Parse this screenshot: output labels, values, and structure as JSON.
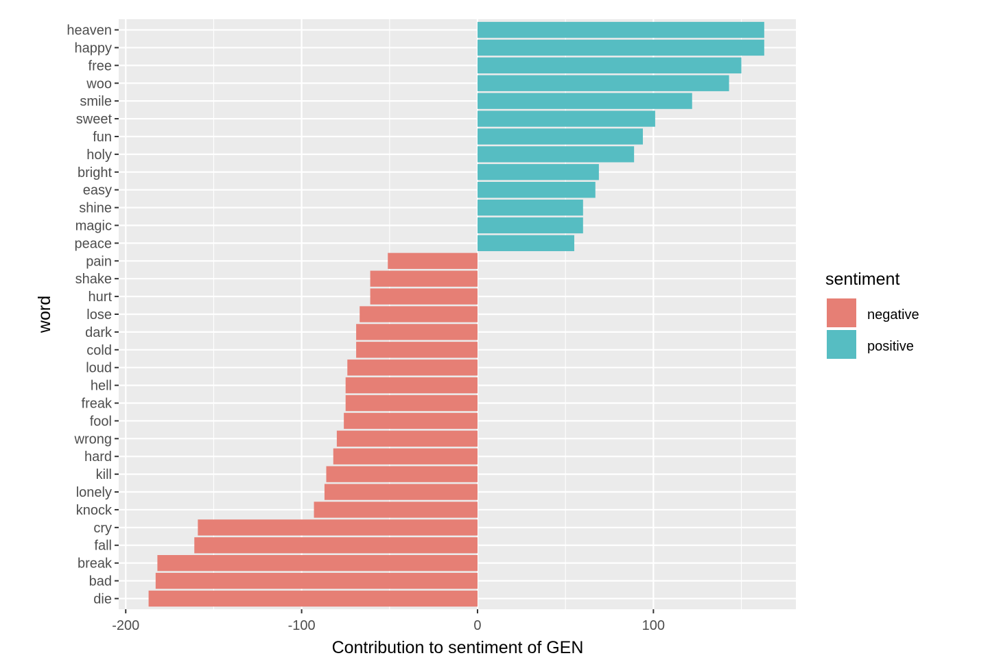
{
  "chart_data": {
    "type": "bar",
    "orientation": "horizontal",
    "xlabel": "Contribution to sentiment of GEN",
    "ylabel": "word",
    "xlim": [
      -204,
      181
    ],
    "x_ticks": [
      -200,
      -100,
      0,
      100
    ],
    "x_tick_labels": [
      "-200",
      "-100",
      "0",
      "100"
    ],
    "grid": true,
    "legend": {
      "title": "sentiment",
      "placement": "right",
      "items": [
        {
          "label": "negative",
          "color": "#E67F75"
        },
        {
          "label": "positive",
          "color": "#56BDC2"
        }
      ]
    },
    "categories": [
      "heaven",
      "happy",
      "free",
      "woo",
      "smile",
      "sweet",
      "fun",
      "holy",
      "bright",
      "easy",
      "shine",
      "magic",
      "peace",
      "pain",
      "shake",
      "hurt",
      "lose",
      "dark",
      "cold",
      "loud",
      "hell",
      "freak",
      "fool",
      "wrong",
      "hard",
      "kill",
      "lonely",
      "knock",
      "cry",
      "fall",
      "break",
      "bad",
      "die"
    ],
    "values": [
      163,
      163,
      150,
      143,
      122,
      101,
      94,
      89,
      69,
      67,
      60,
      60,
      55,
      -51,
      -61,
      -61,
      -67,
      -69,
      -69,
      -74,
      -75,
      -75,
      -76,
      -80,
      -82,
      -86,
      -87,
      -93,
      -159,
      -161,
      -182,
      -183,
      -187
    ],
    "sentiment": [
      "positive",
      "positive",
      "positive",
      "positive",
      "positive",
      "positive",
      "positive",
      "positive",
      "positive",
      "positive",
      "positive",
      "positive",
      "positive",
      "negative",
      "negative",
      "negative",
      "negative",
      "negative",
      "negative",
      "negative",
      "negative",
      "negative",
      "negative",
      "negative",
      "negative",
      "negative",
      "negative",
      "negative",
      "negative",
      "negative",
      "negative",
      "negative",
      "negative"
    ]
  }
}
